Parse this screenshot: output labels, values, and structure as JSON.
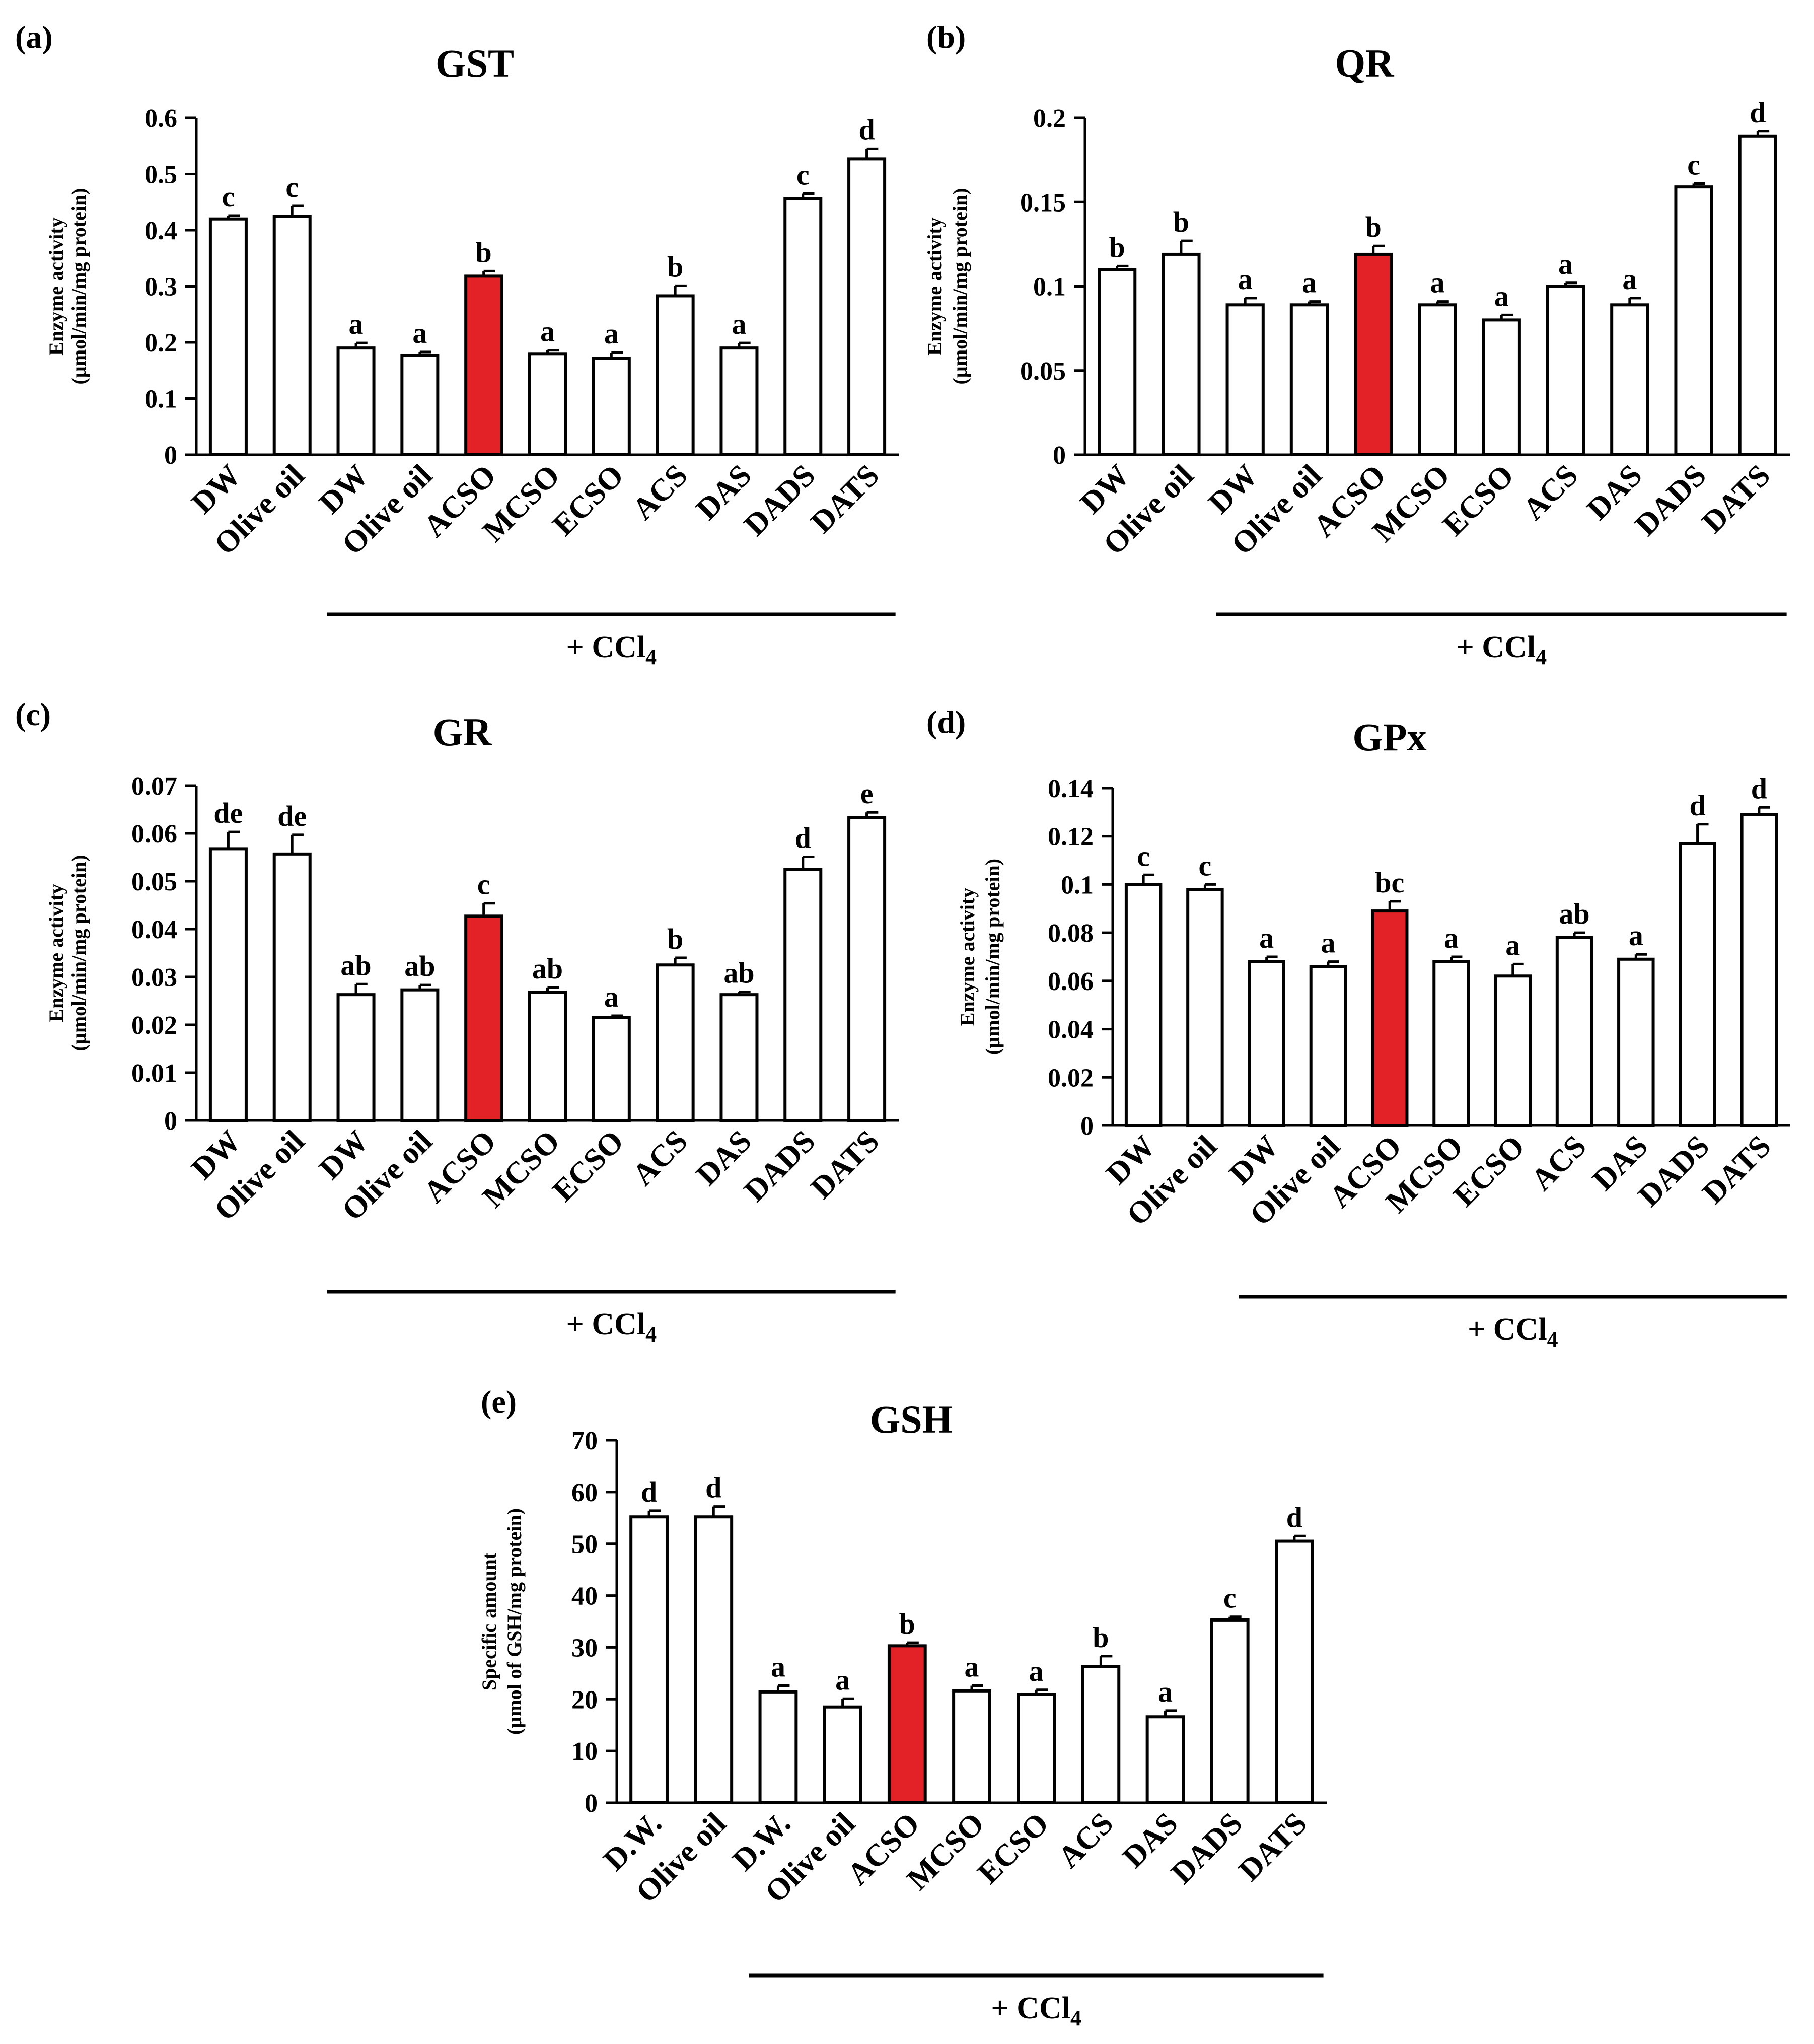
{
  "figure": {
    "treatment_label": "+ CCl",
    "treatment_subscript": "4"
  },
  "chart_data": [
    {
      "type": "bar",
      "panel": "(a)",
      "title": "GST",
      "ylabel": [
        "Enzyme activity",
        "(µmol/min/mg protein)"
      ],
      "ylim": [
        0,
        0.6
      ],
      "yticks": [
        "0",
        "0.1",
        "0.2",
        "0.3",
        "0.4",
        "0.5",
        "0.6"
      ],
      "categories": [
        "DW",
        "Olive oil",
        "DW",
        "Olive oil",
        "ACSO",
        "MCSO",
        "ECSO",
        "ACS",
        "DAS",
        "DADS",
        "DATS"
      ],
      "values": [
        0.42,
        0.425,
        0.19,
        0.177,
        0.318,
        0.18,
        0.172,
        0.283,
        0.19,
        0.456,
        0.527
      ],
      "errors": [
        0.006,
        0.018,
        0.009,
        0.006,
        0.009,
        0.006,
        0.01,
        0.018,
        0.009,
        0.009,
        0.018
      ],
      "sig_letters": [
        "c",
        "c",
        "a",
        "a",
        "b",
        "a",
        "a",
        "b",
        "a",
        "c",
        "d"
      ],
      "highlight_index": 4,
      "ccl4_group": [
        2,
        10
      ]
    },
    {
      "type": "bar",
      "panel": "(b)",
      "title": "QR",
      "ylabel": [
        "Enzyme activity",
        "(µmol/min/mg protein)"
      ],
      "ylim": [
        0,
        0.2
      ],
      "yticks": [
        "0",
        "0.05",
        "0.1",
        "0.15",
        "0.2"
      ],
      "categories": [
        "DW",
        "Olive oil",
        "DW",
        "Olive oil",
        "ACSO",
        "MCSO",
        "ECSO",
        "ACS",
        "DAS",
        "DADS",
        "DATS"
      ],
      "values": [
        0.11,
        0.119,
        0.089,
        0.089,
        0.119,
        0.089,
        0.08,
        0.1,
        0.089,
        0.159,
        0.189
      ],
      "errors": [
        0.002,
        0.008,
        0.004,
        0.002,
        0.005,
        0.002,
        0.003,
        0.002,
        0.004,
        0.002,
        0.003
      ],
      "sig_letters": [
        "b",
        "b",
        "a",
        "a",
        "b",
        "a",
        "a",
        "a",
        "a",
        "c",
        "d"
      ],
      "highlight_index": 4,
      "ccl4_group": [
        2,
        10
      ]
    },
    {
      "type": "bar",
      "panel": "(c)",
      "title": "GR",
      "ylabel": [
        "Enzyme activity",
        "(µmol/min/mg protein)"
      ],
      "ylim": [
        0,
        0.07
      ],
      "yticks": [
        "0",
        "0.01",
        "0.02",
        "0.03",
        "0.04",
        "0.05",
        "0.06",
        "0.07"
      ],
      "categories": [
        "DW",
        "Olive oil",
        "DW",
        "Olive oil",
        "ACSO",
        "MCSO",
        "ECSO",
        "ACS",
        "DAS",
        "DADS",
        "DATS"
      ],
      "values": [
        0.0568,
        0.0557,
        0.0263,
        0.0273,
        0.0427,
        0.0268,
        0.0215,
        0.0325,
        0.0263,
        0.0525,
        0.0633
      ],
      "errors": [
        0.0035,
        0.004,
        0.0022,
        0.001,
        0.0027,
        0.001,
        0.0004,
        0.0015,
        0.0006,
        0.0026,
        0.0011
      ],
      "sig_letters": [
        "de",
        "de",
        "ab",
        "ab",
        "c",
        "ab",
        "a",
        "b",
        "ab",
        "d",
        "e"
      ],
      "highlight_index": 4,
      "ccl4_group": [
        2,
        10
      ]
    },
    {
      "type": "bar",
      "panel": "(d)",
      "title": "GPx",
      "ylabel": [
        "Enzyme activity",
        "(µmol/min/mg protein)"
      ],
      "ylim": [
        0,
        0.14
      ],
      "yticks": [
        "0",
        "0.02",
        "0.04",
        "0.06",
        "0.08",
        "0.1",
        "0.12",
        "0.14"
      ],
      "categories": [
        "DW",
        "Olive oil",
        "DW",
        "Olive oil",
        "ACSO",
        "MCSO",
        "ECSO",
        "ACS",
        "DAS",
        "DADS",
        "DATS"
      ],
      "values": [
        0.1,
        0.098,
        0.068,
        0.066,
        0.089,
        0.068,
        0.062,
        0.078,
        0.069,
        0.117,
        0.129
      ],
      "errors": [
        0.004,
        0.002,
        0.002,
        0.002,
        0.004,
        0.002,
        0.005,
        0.002,
        0.002,
        0.008,
        0.003
      ],
      "sig_letters": [
        "c",
        "c",
        "a",
        "a",
        "bc",
        "a",
        "a",
        "ab",
        "a",
        "d",
        "d"
      ],
      "highlight_index": 4,
      "ccl4_group": [
        2,
        10
      ]
    },
    {
      "type": "bar",
      "panel": "(e)",
      "title": "GSH",
      "ylabel": [
        "Specific amount",
        "(µmol of  GSH/mg protein)"
      ],
      "ylim": [
        0,
        70
      ],
      "yticks": [
        "0",
        "10",
        "20",
        "30",
        "40",
        "50",
        "60",
        "70"
      ],
      "categories": [
        "D.W.",
        "Olive oil",
        "D.W.",
        "Olive oil",
        "ACSO",
        "MCSO",
        "ECSO",
        "ACS",
        "DAS",
        "DADS",
        "DATS"
      ],
      "values": [
        55.2,
        55.2,
        21.4,
        18.5,
        30.3,
        21.6,
        21.0,
        26.3,
        16.6,
        35.3,
        50.5
      ],
      "errors": [
        1.2,
        2.0,
        1.2,
        1.6,
        0.6,
        1.0,
        0.8,
        2.0,
        1.2,
        0.6,
        1.0
      ],
      "sig_letters": [
        "d",
        "d",
        "a",
        "a",
        "b",
        "a",
        "a",
        "b",
        "a",
        "c",
        "d"
      ],
      "highlight_index": 4,
      "ccl4_group": [
        2,
        10
      ]
    }
  ],
  "colors": {
    "bar_fill": "#ffffff",
    "bar_highlight": "#e32228",
    "stroke": "#000000"
  }
}
